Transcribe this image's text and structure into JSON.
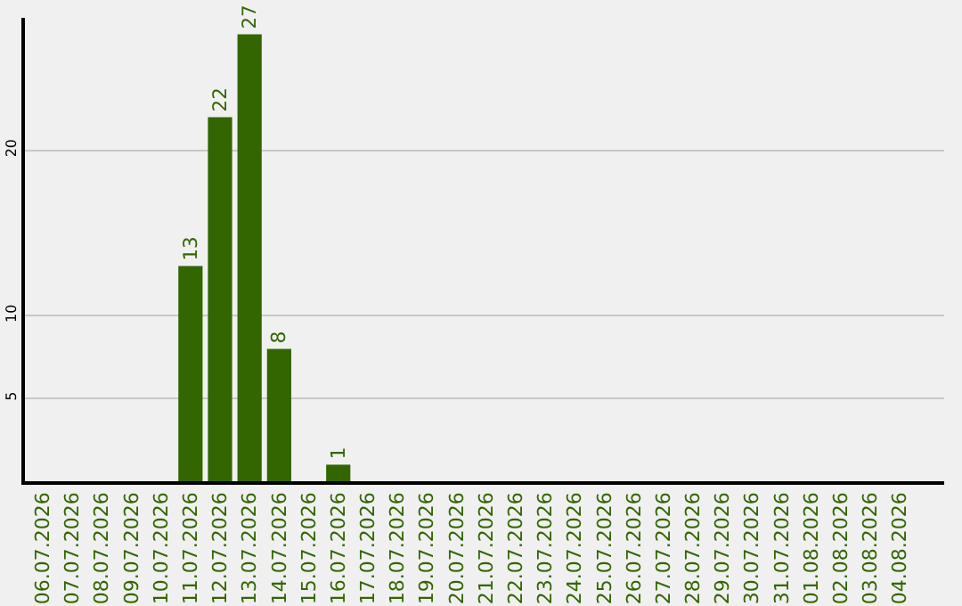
{
  "chart_data": {
    "type": "bar",
    "categories": [
      "06.07.2026",
      "07.07.2026",
      "08.07.2026",
      "09.07.2026",
      "10.07.2026",
      "11.07.2026",
      "12.07.2026",
      "13.07.2026",
      "14.07.2026",
      "15.07.2026",
      "16.07.2026",
      "17.07.2026",
      "18.07.2026",
      "19.07.2026",
      "20.07.2026",
      "21.07.2026",
      "22.07.2026",
      "23.07.2026",
      "24.07.2026",
      "25.07.2026",
      "26.07.2026",
      "27.07.2026",
      "28.07.2026",
      "29.07.2026",
      "30.07.2026",
      "31.07.2026",
      "01.08.2026",
      "02.08.2026",
      "03.08.2026",
      "04.08.2026"
    ],
    "values": [
      0,
      0,
      0,
      0,
      0,
      13,
      22,
      27,
      8,
      0,
      1,
      0,
      0,
      0,
      0,
      0,
      0,
      0,
      0,
      0,
      0,
      0,
      0,
      0,
      0,
      0,
      0,
      0,
      0,
      0
    ],
    "value_labels": [
      null,
      null,
      null,
      null,
      null,
      "13",
      "22",
      "27",
      "8",
      null,
      "1",
      null,
      null,
      null,
      null,
      null,
      null,
      null,
      null,
      null,
      null,
      null,
      null,
      null,
      null,
      null,
      null,
      null,
      null,
      null
    ],
    "color": "#336600",
    "ylim": [
      0,
      28
    ],
    "yticks": [
      5,
      10,
      20
    ],
    "grid": "y",
    "legend": false
  }
}
